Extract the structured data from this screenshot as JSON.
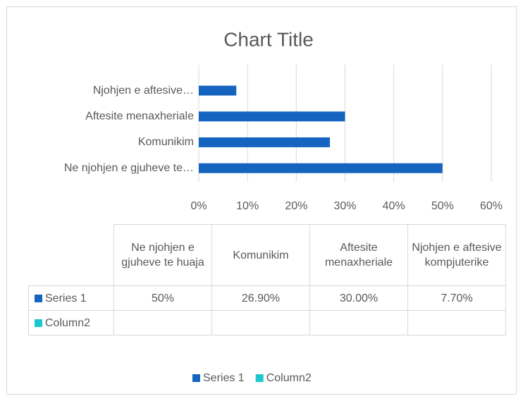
{
  "chart_data": {
    "type": "bar",
    "orientation": "horizontal",
    "title": "Chart Title",
    "categories": [
      "Ne njohjen e gjuheve te huaja",
      "Komunikim",
      "Aftesite menaxheriale",
      "Njohjen e aftesive kompjuterike"
    ],
    "axis_labels": [
      "Ne njohjen e gjuheve te…",
      "Komunikim",
      "Aftesite menaxheriale",
      "Njohjen e aftesive…"
    ],
    "series": [
      {
        "name": "Series 1",
        "color": "#1565c0",
        "values": [
          50,
          26.9,
          30,
          7.7
        ],
        "value_labels": [
          "50%",
          "26.90%",
          "30.00%",
          "7.70%"
        ]
      },
      {
        "name": "Column2",
        "color": "#1cc7d0",
        "values": [
          null,
          null,
          null,
          null
        ]
      }
    ],
    "xlim": [
      0,
      60
    ],
    "xticks": [
      {
        "value": 0,
        "label": "0%"
      },
      {
        "value": 10,
        "label": "10%"
      },
      {
        "value": 20,
        "label": "20%"
      },
      {
        "value": 30,
        "label": "30%"
      },
      {
        "value": 40,
        "label": "40%"
      },
      {
        "value": 50,
        "label": "50%"
      },
      {
        "value": 60,
        "label": "60%"
      }
    ],
    "grid": true,
    "legend": "bottom"
  }
}
